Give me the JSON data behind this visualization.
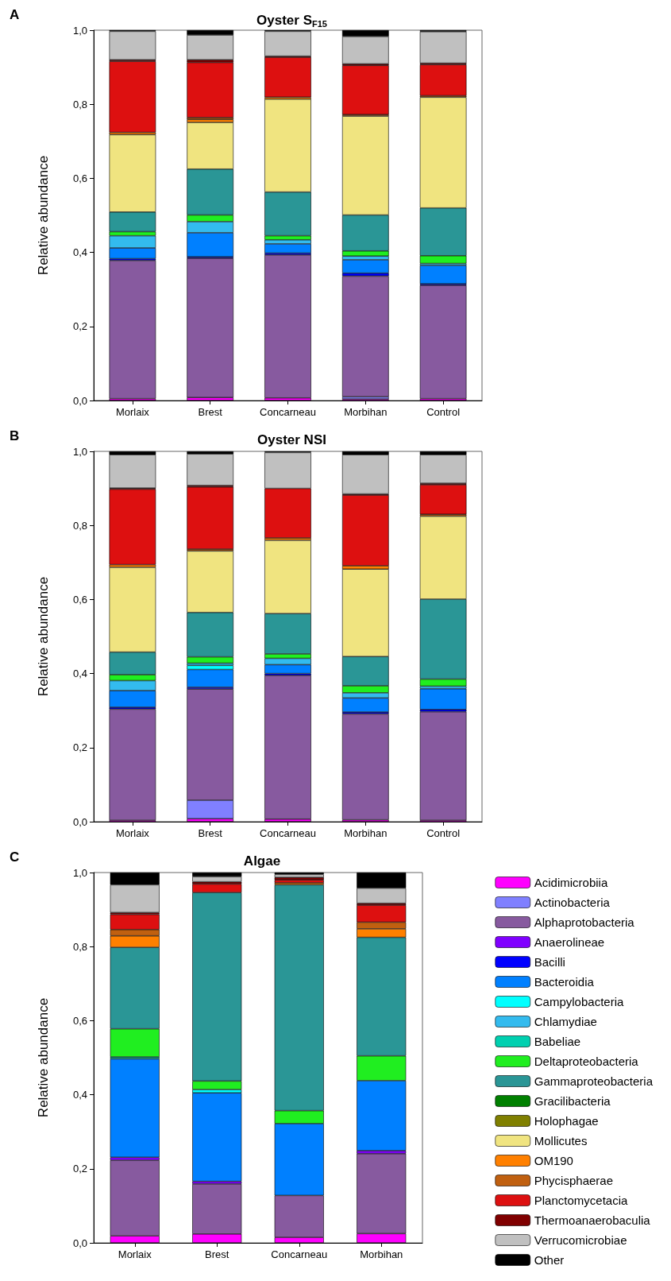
{
  "chart_data": [
    {
      "type": "bar",
      "stacked": true,
      "title": "Oyster S$_{F15}$",
      "annotations": [
        "A"
      ],
      "ylabel": "Relative abundance",
      "categories": [
        "Morlaix",
        "Brest",
        "Concarneau",
        "Morbihan",
        "Control"
      ],
      "ylim": [
        0,
        1
      ],
      "yticks": [
        {
          "value": 0,
          "label": "0,0"
        },
        {
          "value": 0.2,
          "label": "0,2"
        },
        {
          "value": 0.4,
          "label": "0,4"
        },
        {
          "value": 0.6,
          "label": "0,6"
        },
        {
          "value": 0.8,
          "label": "0,8"
        },
        {
          "value": 1,
          "label": "1,0"
        }
      ],
      "grid": false,
      "legend": false,
      "series": [
        {
          "color": "#ff00ff",
          "values": [
            0.005,
            0.008,
            0.007,
            0.004,
            0.005
          ]
        },
        {
          "color": "#8080ff",
          "values": [
            null,
            null,
            null,
            0.006,
            null
          ]
        },
        {
          "color": "#875a9f",
          "values": [
            0.373,
            0.376,
            0.386,
            0.326,
            0.306
          ]
        },
        {
          "color": "#0000ff",
          "values": [
            0.005,
            0.004,
            0.005,
            0.008,
            0.004
          ]
        },
        {
          "color": "#0080ff",
          "values": [
            0.029,
            0.065,
            0.025,
            0.036,
            0.05
          ]
        },
        {
          "color": "#33bbee",
          "values": [
            0.033,
            0.03,
            0.011,
            0.01,
            0.005
          ]
        },
        {
          "color": "#20ee20",
          "values": [
            0.011,
            0.018,
            0.011,
            0.014,
            0.021
          ]
        },
        {
          "color": "#2a9696",
          "values": [
            0.053,
            0.124,
            0.118,
            0.097,
            0.129
          ]
        },
        {
          "color": "#f0e480",
          "values": [
            0.209,
            0.126,
            0.251,
            0.267,
            0.299
          ]
        },
        {
          "color": "#ff8000",
          "values": [
            0.006,
            0.008,
            0.005,
            null,
            null
          ]
        },
        {
          "color": "#c06010",
          "values": [
            null,
            0.005,
            null,
            0.004,
            0.004
          ]
        },
        {
          "color": "#dd1010",
          "values": [
            0.192,
            0.149,
            0.108,
            0.133,
            0.084
          ]
        },
        {
          "color": "#800000",
          "values": [
            0.004,
            0.007,
            0.003,
            0.004,
            0.004
          ]
        },
        {
          "color": "#c0c0c0",
          "values": [
            0.077,
            0.067,
            0.067,
            0.074,
            0.085
          ]
        },
        {
          "color": "#000000",
          "values": [
            0.003,
            0.013,
            0.003,
            0.017,
            0.004
          ]
        }
      ]
    },
    {
      "type": "bar",
      "stacked": true,
      "title": "Oyster NSI",
      "annotations": [
        "B"
      ],
      "ylabel": "Relative abundance",
      "categories": [
        "Morlaix",
        "Brest",
        "Concarneau",
        "Morbihan",
        "Control"
      ],
      "ylim": [
        0,
        1
      ],
      "yticks": [
        {
          "value": 0,
          "label": "0,0"
        },
        {
          "value": 0.2,
          "label": "0,2"
        },
        {
          "value": 0.4,
          "label": "0,4"
        },
        {
          "value": 0.6,
          "label": "0,6"
        },
        {
          "value": 0.8,
          "label": "0,8"
        },
        {
          "value": 1,
          "label": "1,0"
        }
      ],
      "grid": false,
      "legend": false,
      "series": [
        {
          "color": "#ff00ff",
          "values": [
            0.004,
            0.008,
            0.007,
            0.005,
            0.004
          ]
        },
        {
          "color": "#8080ff",
          "values": [
            null,
            0.05,
            null,
            null,
            null
          ]
        },
        {
          "color": "#875a9f",
          "values": [
            0.3,
            0.3,
            0.388,
            0.286,
            0.293
          ]
        },
        {
          "color": "#0000ff",
          "values": [
            0.005,
            0.005,
            0.005,
            0.005,
            0.006
          ]
        },
        {
          "color": "#0080ff",
          "values": [
            0.045,
            0.048,
            0.024,
            0.038,
            0.056
          ]
        },
        {
          "color": "#00ffff",
          "values": [
            null,
            0.011,
            null,
            null,
            null
          ]
        },
        {
          "color": "#33bbee",
          "values": [
            0.027,
            0.006,
            0.017,
            0.014,
            0.007
          ]
        },
        {
          "color": "#20ee20",
          "values": [
            0.016,
            0.017,
            0.012,
            0.019,
            0.019
          ]
        },
        {
          "color": "#2a9696",
          "values": [
            0.061,
            0.12,
            0.109,
            0.079,
            0.216
          ]
        },
        {
          "color": "#f0e480",
          "values": [
            0.229,
            0.166,
            0.198,
            0.236,
            0.224
          ]
        },
        {
          "color": "#ff8000",
          "values": [
            0.007,
            null,
            0.006,
            0.009,
            null
          ]
        },
        {
          "color": "#c06010",
          "values": [
            null,
            0.005,
            null,
            null,
            0.005
          ]
        },
        {
          "color": "#dd1010",
          "values": [
            0.204,
            0.168,
            0.134,
            0.191,
            0.08
          ]
        },
        {
          "color": "#800000",
          "values": [
            0.003,
            0.004,
            null,
            0.003,
            0.004
          ]
        },
        {
          "color": "#c0c0c0",
          "values": [
            0.09,
            0.085,
            0.097,
            0.106,
            0.077
          ]
        },
        {
          "color": "#000000",
          "values": [
            0.009,
            0.007,
            0.003,
            0.009,
            0.009
          ]
        }
      ]
    },
    {
      "type": "bar",
      "stacked": true,
      "title": "Algae",
      "annotations": [
        "C"
      ],
      "ylabel": "Relative abundance",
      "categories": [
        "Morlaix",
        "Brest",
        "Concarneau",
        "Morbihan"
      ],
      "ylim": [
        0,
        1
      ],
      "yticks": [
        {
          "value": 0,
          "label": "0,0"
        },
        {
          "value": 0.2,
          "label": "0,2"
        },
        {
          "value": 0.4,
          "label": "0,4"
        },
        {
          "value": 0.6,
          "label": "0,6"
        },
        {
          "value": 0.8,
          "label": "0,8"
        },
        {
          "value": 1,
          "label": "1,0"
        }
      ],
      "grid": false,
      "legend": "right",
      "series": [
        {
          "name": "Acidimicrobiia",
          "color": "#ff00ff",
          "values": [
            0.019,
            0.024,
            0.015,
            0.025
          ]
        },
        {
          "name": "Actinobacteria",
          "color": "#8080ff",
          "values": [
            null,
            null,
            null,
            null
          ]
        },
        {
          "name": "Alphaprotobacteria",
          "color": "#875a9f",
          "values": [
            0.204,
            0.135,
            0.113,
            0.216
          ]
        },
        {
          "name": "Anaerolineae",
          "color": "#8000ff",
          "values": [
            0.008,
            0.007,
            null,
            0.008
          ]
        },
        {
          "name": "Bacilli",
          "color": "#0000ff",
          "values": [
            null,
            null,
            null,
            null
          ]
        },
        {
          "name": "Bacteroidia",
          "color": "#0080ff",
          "values": [
            0.266,
            0.239,
            0.194,
            0.189
          ]
        },
        {
          "name": "Campylobacteria",
          "color": "#00ffff",
          "values": [
            null,
            0.009,
            null,
            null
          ]
        },
        {
          "name": "Chlamydiae",
          "color": "#33bbee",
          "values": [
            null,
            null,
            null,
            null
          ]
        },
        {
          "name": "Babeliae",
          "color": "#00d0b0",
          "values": [
            0.005,
            null,
            null,
            null
          ]
        },
        {
          "name": "Deltaproteobacteria",
          "color": "#20ee20",
          "values": [
            0.076,
            0.023,
            0.035,
            0.067
          ]
        },
        {
          "name": "Gammaproteobacteria",
          "color": "#2a9696",
          "values": [
            0.22,
            0.509,
            0.61,
            0.32
          ]
        },
        {
          "name": "Gracilibacteria",
          "color": "#008000",
          "values": [
            null,
            null,
            null,
            null
          ]
        },
        {
          "name": "Holophagae",
          "color": "#808000",
          "values": [
            null,
            null,
            null,
            null
          ]
        },
        {
          "name": "Mollicutes",
          "color": "#f0e480",
          "values": [
            null,
            null,
            null,
            null
          ]
        },
        {
          "name": "OM190",
          "color": "#ff8000",
          "values": [
            0.031,
            null,
            0.005,
            0.023
          ]
        },
        {
          "name": "Phycisphaerae",
          "color": "#c06010",
          "values": [
            0.017,
            null,
            null,
            0.018
          ]
        },
        {
          "name": "Planctomycetacia",
          "color": "#dd1010",
          "values": [
            0.041,
            0.023,
            0.008,
            0.046
          ]
        },
        {
          "name": "Thermoanaerobaculia",
          "color": "#800000",
          "values": [
            0.005,
            0.006,
            0.007,
            0.005
          ]
        },
        {
          "name": "Verrucomicrobiae",
          "color": "#c0c0c0",
          "values": [
            0.075,
            0.014,
            0.008,
            0.041
          ]
        },
        {
          "name": "Other",
          "color": "#000000",
          "values": [
            0.033,
            0.011,
            0.005,
            0.042
          ]
        }
      ]
    }
  ]
}
